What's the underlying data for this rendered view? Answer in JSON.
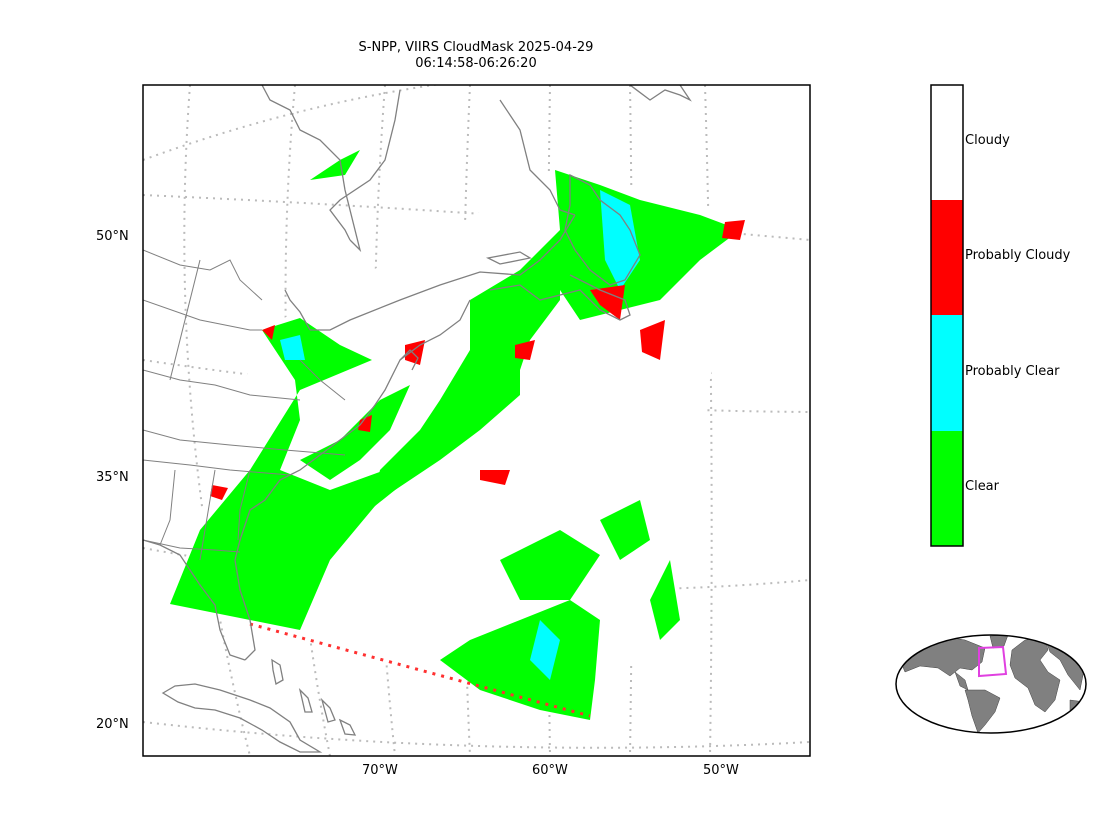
{
  "title": {
    "line1": "S-NPP, VIIRS CloudMask 2025-04-29",
    "line2": "06:14:58-06:26:20"
  },
  "axes": {
    "lat_labels": [
      "50°N",
      "35°N",
      "20°N"
    ],
    "lon_labels": [
      "70°W",
      "60°W",
      "50°W"
    ]
  },
  "colorbar": {
    "categories": [
      {
        "label": "Cloudy",
        "color": "#ffffff"
      },
      {
        "label": "Probably Cloudy",
        "color": "#ff0000"
      },
      {
        "label": "Probably Clear",
        "color": "#00ffff"
      },
      {
        "label": "Clear",
        "color": "#00ff00"
      }
    ]
  },
  "colors": {
    "coastline": "#808080",
    "gridline": "#bbbbbb",
    "inset_land": "#808080",
    "inset_box": "#e040e0"
  }
}
